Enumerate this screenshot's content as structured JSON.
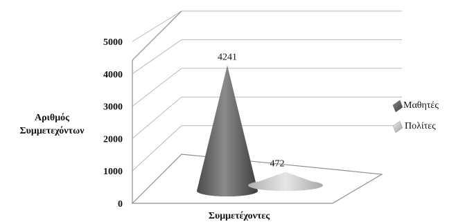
{
  "chart_data": {
    "type": "bar",
    "shape": "cone-3d",
    "title": "",
    "xlabel": "Συμμετέχοντες",
    "ylabel_line1": "Αριθμός",
    "ylabel_line2": "Συμμετεχόντων",
    "ylim": [
      0,
      5000
    ],
    "yticks": [
      0,
      1000,
      2000,
      3000,
      4000,
      5000
    ],
    "grid": true,
    "legend_position": "right",
    "series": [
      {
        "name": "Μαθητές",
        "value": 4241,
        "label": "4241",
        "color": "#6f6f6f"
      },
      {
        "name": "Πολίτες",
        "value": 472,
        "label": "472",
        "color": "#cfcfcf"
      }
    ]
  }
}
